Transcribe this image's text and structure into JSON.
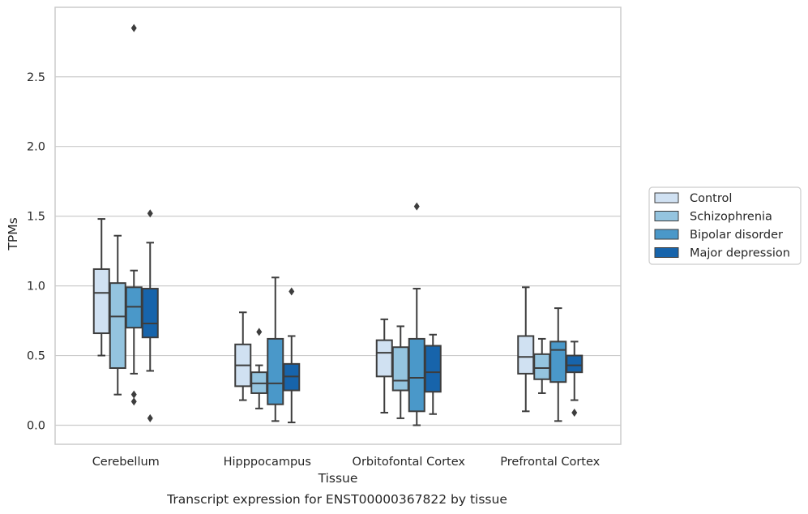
{
  "chart_data": {
    "type": "box",
    "xlabel": "Tissue",
    "ylabel": "TPMs",
    "caption": "Transcript expression for ENST00000367822 by tissue",
    "ylim": [
      -0.14,
      2.98
    ],
    "yticks": [
      0.0,
      0.5,
      1.0,
      1.5,
      2.0,
      2.5
    ],
    "ytick_labels": [
      "0.0",
      "0.5",
      "1.0",
      "1.5",
      "2.0",
      "2.5"
    ],
    "grid": "horizontal",
    "legend_position": "right",
    "categories": [
      "Cerebellum",
      "Hipppocampus",
      "Orbitofontal Cortex",
      "Prefrontal Cortex"
    ],
    "series": [
      {
        "name": "Control",
        "color": "#d0e1f2",
        "boxes": [
          {
            "whislo": 0.5,
            "q1": 0.66,
            "med": 0.95,
            "q3": 1.12,
            "whishi": 1.48,
            "fliers": []
          },
          {
            "whislo": 0.18,
            "q1": 0.28,
            "med": 0.43,
            "q3": 0.58,
            "whishi": 0.81,
            "fliers": []
          },
          {
            "whislo": 0.09,
            "q1": 0.35,
            "med": 0.52,
            "q3": 0.61,
            "whishi": 0.76,
            "fliers": []
          },
          {
            "whislo": 0.1,
            "q1": 0.37,
            "med": 0.49,
            "q3": 0.64,
            "whishi": 0.99,
            "fliers": []
          }
        ]
      },
      {
        "name": "Schizophrenia",
        "color": "#94c4df",
        "boxes": [
          {
            "whislo": 0.22,
            "q1": 0.41,
            "med": 0.78,
            "q3": 1.02,
            "whishi": 1.36,
            "fliers": []
          },
          {
            "whislo": 0.12,
            "q1": 0.23,
            "med": 0.3,
            "q3": 0.38,
            "whishi": 0.43,
            "fliers": [
              0.67
            ]
          },
          {
            "whislo": 0.05,
            "q1": 0.25,
            "med": 0.32,
            "q3": 0.56,
            "whishi": 0.71,
            "fliers": []
          },
          {
            "whislo": 0.23,
            "q1": 0.33,
            "med": 0.41,
            "q3": 0.51,
            "whishi": 0.62,
            "fliers": []
          }
        ]
      },
      {
        "name": "Bipolar disorder",
        "color": "#4a98c9",
        "boxes": [
          {
            "whislo": 0.37,
            "q1": 0.7,
            "med": 0.85,
            "q3": 0.99,
            "whishi": 1.11,
            "fliers": [
              2.85,
              0.22,
              0.17
            ]
          },
          {
            "whislo": 0.03,
            "q1": 0.15,
            "med": 0.3,
            "q3": 0.62,
            "whishi": 1.06,
            "fliers": []
          },
          {
            "whislo": 0.0,
            "q1": 0.1,
            "med": 0.34,
            "q3": 0.62,
            "whishi": 0.98,
            "fliers": [
              1.57
            ]
          },
          {
            "whislo": 0.03,
            "q1": 0.31,
            "med": 0.54,
            "q3": 0.6,
            "whishi": 0.84,
            "fliers": []
          }
        ]
      },
      {
        "name": "Major depression",
        "color": "#1764ab",
        "boxes": [
          {
            "whislo": 0.39,
            "q1": 0.63,
            "med": 0.73,
            "q3": 0.98,
            "whishi": 1.31,
            "fliers": [
              1.52,
              0.05
            ]
          },
          {
            "whislo": 0.02,
            "q1": 0.25,
            "med": 0.35,
            "q3": 0.44,
            "whishi": 0.64,
            "fliers": [
              0.96
            ]
          },
          {
            "whislo": 0.08,
            "q1": 0.24,
            "med": 0.38,
            "q3": 0.57,
            "whishi": 0.65,
            "fliers": []
          },
          {
            "whislo": 0.18,
            "q1": 0.38,
            "med": 0.43,
            "q3": 0.5,
            "whishi": 0.6,
            "fliers": [
              0.09
            ]
          }
        ]
      }
    ]
  }
}
